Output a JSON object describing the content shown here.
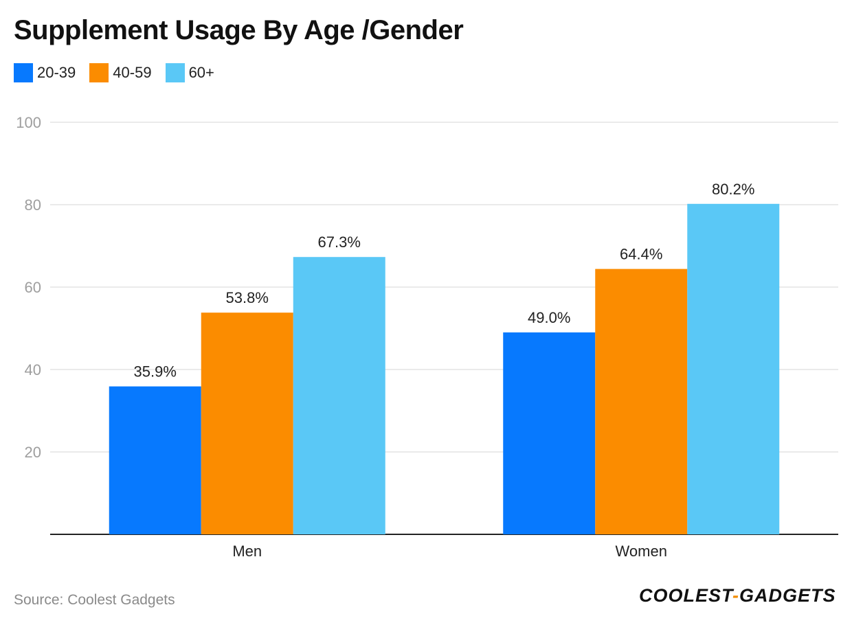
{
  "chart_data": {
    "type": "bar",
    "title": "Supplement Usage By Age /Gender",
    "categories": [
      "Men",
      "Women"
    ],
    "series": [
      {
        "name": "20-39",
        "values": [
          35.9,
          49.0
        ],
        "labels": [
          "35.9%",
          "49.0%"
        ],
        "color": "#0779fe"
      },
      {
        "name": "40-59",
        "values": [
          53.8,
          64.4
        ],
        "labels": [
          "53.8%",
          "64.4%"
        ],
        "color": "#fb8c00"
      },
      {
        "name": "60+",
        "values": [
          67.3,
          80.2
        ],
        "labels": [
          "67.3%",
          "80.2%"
        ],
        "color": "#5ac8f6"
      }
    ],
    "ylim": [
      0,
      100
    ],
    "yticks": [
      "20",
      "40",
      "60",
      "80",
      "100"
    ],
    "grid": true,
    "legend": "top-left"
  },
  "footer": {
    "source": "Source: Coolest Gadgets",
    "brand_left": "COOLEST",
    "brand_dash": "-",
    "brand_right": "GADGETS"
  }
}
